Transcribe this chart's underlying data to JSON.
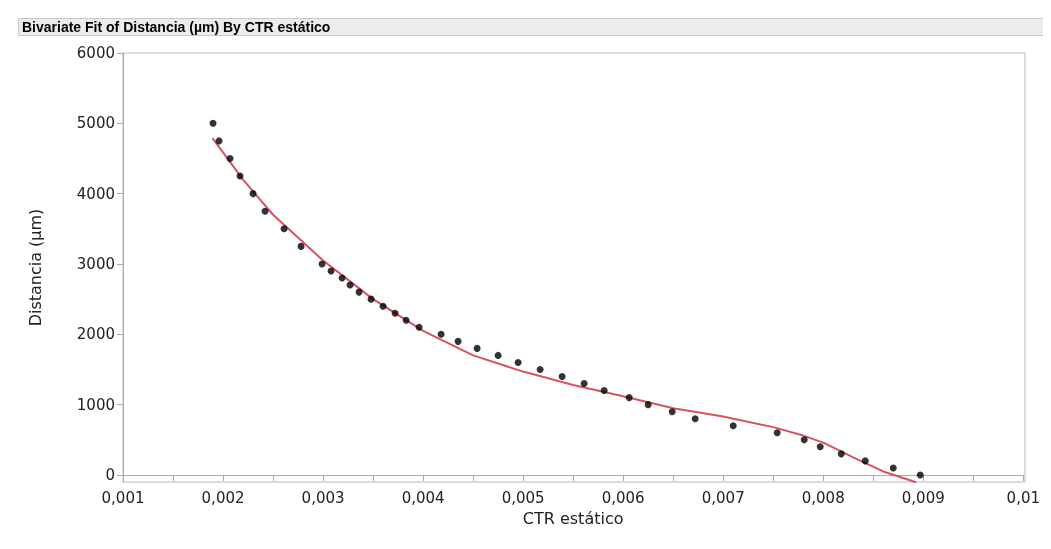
{
  "chart_data": {
    "type": "scatter",
    "title": "Bivariate Fit of Distancia (µm) By CTR estático",
    "xlabel": "CTR estático",
    "ylabel": "Distancia (µm)",
    "xlim": [
      0.001,
      0.01
    ],
    "ylim": [
      -100,
      6000
    ],
    "xticks": [
      {
        "value": 0.001,
        "label": "0,001"
      },
      {
        "value": 0.002,
        "label": "0,002"
      },
      {
        "value": 0.003,
        "label": "0,003"
      },
      {
        "value": 0.004,
        "label": "0,004"
      },
      {
        "value": 0.005,
        "label": "0,005"
      },
      {
        "value": 0.006,
        "label": "0,006"
      },
      {
        "value": 0.007,
        "label": "0,007"
      },
      {
        "value": 0.008,
        "label": "0,008"
      },
      {
        "value": 0.009,
        "label": "0,009"
      },
      {
        "value": 0.01,
        "label": "0,01"
      }
    ],
    "yticks": [
      0,
      1000,
      2000,
      3000,
      4000,
      5000,
      6000
    ],
    "marker": "circle",
    "series": [
      {
        "color": "#000000",
        "x": [
          0.0019,
          0.00196,
          0.00207,
          0.00217,
          0.0023,
          0.00242,
          0.00261,
          0.00278,
          0.00299,
          0.00308,
          0.00319,
          0.00327,
          0.00336,
          0.00348,
          0.0036,
          0.00372,
          0.00383,
          0.00396,
          0.00418,
          0.00435,
          0.00454,
          0.00475,
          0.00495,
          0.00517,
          0.00539,
          0.00561,
          0.00581,
          0.00606,
          0.00625,
          0.00649,
          0.00672,
          0.0071,
          0.00754,
          0.00781,
          0.00797,
          0.00818,
          0.00842,
          0.0087,
          0.00897
        ],
        "values": [
          5000,
          4750,
          4500,
          4250,
          4000,
          3750,
          3500,
          3250,
          3000,
          2900,
          2800,
          2700,
          2600,
          2500,
          2400,
          2300,
          2200,
          2100,
          2000,
          1900,
          1800,
          1700,
          1600,
          1500,
          1400,
          1300,
          1200,
          1100,
          1000,
          900,
          800,
          700,
          600,
          500,
          400,
          300,
          200,
          100,
          0
        ]
      },
      {
        "type": "line",
        "color": "#d9535f",
        "marker": "none",
        "x": [
          0.0019,
          0.0022,
          0.0025,
          0.003,
          0.0035,
          0.004,
          0.0045,
          0.005,
          0.0055,
          0.006,
          0.0065,
          0.007,
          0.0075,
          0.0078,
          0.008,
          0.0083,
          0.0086,
          0.00892
        ],
        "values": [
          4780,
          4200,
          3700,
          3050,
          2500,
          2050,
          1700,
          1470,
          1280,
          1120,
          950,
          830,
          680,
          560,
          460,
          250,
          50,
          -100
        ]
      }
    ]
  }
}
